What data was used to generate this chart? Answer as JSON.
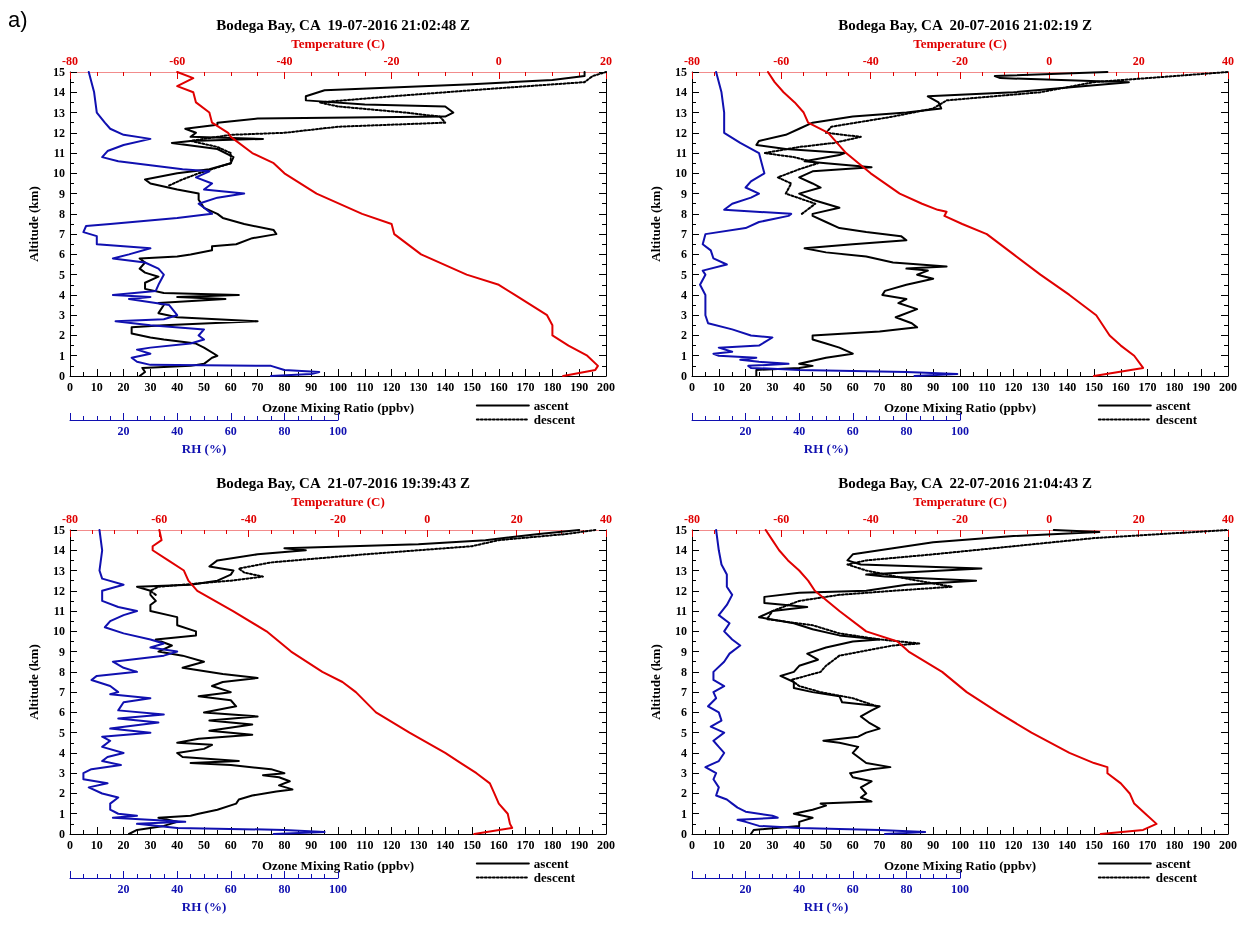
{
  "chart_data": [
    {
      "type": "line",
      "title": "Bodega Bay, CA  19-07-2016 21:02:48 Z",
      "annotations": [
        "a)"
      ],
      "xlabel": "Ozone Mixing Ratio (ppbv)",
      "ylabel": "Altitude (km)",
      "x2label": "Temperature (C)",
      "xlim": [
        0,
        200
      ],
      "xticks": [
        0,
        10,
        20,
        30,
        40,
        50,
        60,
        70,
        80,
        90,
        100,
        110,
        120,
        130,
        140,
        150,
        160,
        170,
        180,
        190,
        200
      ],
      "x2lim": [
        -80,
        20
      ],
      "x2ticks": [
        -80,
        -60,
        -40,
        -20,
        0,
        20
      ],
      "ylim": [
        0,
        15
      ],
      "yticks": [
        0,
        1,
        2,
        3,
        4,
        5,
        6,
        7,
        8,
        9,
        10,
        11,
        12,
        13,
        14,
        15
      ],
      "grid": false,
      "legend": "bottom right",
      "series": [
        {
          "name": "ascent",
          "color": "#000000",
          "line_style": "solid",
          "x": [
            26,
            28,
            27,
            45,
            50,
            53,
            55,
            50,
            47,
            35,
            30,
            23,
            23,
            35,
            70,
            40,
            33,
            35,
            33,
            58,
            40,
            63,
            35,
            28,
            28,
            33,
            28,
            26,
            28,
            26,
            40,
            45,
            53,
            53,
            62,
            68,
            77,
            76,
            65,
            57,
            55,
            50,
            48,
            48,
            40,
            30,
            28,
            40,
            52,
            60,
            61,
            55,
            38,
            45,
            72,
            45,
            47,
            43,
            55,
            55,
            70,
            140,
            143,
            140,
            110,
            88,
            88,
            95,
            150,
            180,
            192,
            192
          ],
          "values": [
            0,
            0.2,
            0.4,
            0.5,
            0.6,
            0.9,
            1.0,
            1.4,
            1.6,
            1.8,
            1.9,
            2.1,
            2.4,
            2.5,
            2.7,
            2.9,
            3.1,
            3.5,
            3.6,
            3.8,
            3.9,
            4.0,
            4.1,
            4.3,
            4.6,
            4.9,
            5.1,
            5.3,
            5.6,
            5.8,
            5.9,
            6.0,
            6.2,
            6.4,
            6.5,
            6.8,
            7.0,
            7.2,
            7.5,
            7.8,
            8.0,
            8.3,
            8.7,
            9.0,
            9.2,
            9.5,
            9.7,
            10.0,
            10.2,
            10.5,
            10.8,
            11.2,
            11.5,
            11.6,
            11.7,
            11.8,
            12.0,
            12.2,
            12.4,
            12.5,
            12.7,
            12.8,
            13.0,
            13.3,
            13.4,
            13.6,
            13.8,
            14.1,
            14.4,
            14.6,
            14.8,
            15.0
          ]
        },
        {
          "name": "descent",
          "color": "#000000",
          "line_style": "dotted",
          "x": [
            37,
            42,
            48,
            60,
            60,
            55,
            45,
            60,
            80,
            100,
            140,
            138,
            125,
            100,
            93,
            120,
            160,
            192,
            195,
            200
          ],
          "values": [
            9.4,
            9.7,
            10.0,
            10.5,
            11.0,
            11.3,
            11.6,
            11.9,
            12.0,
            12.3,
            12.5,
            12.8,
            13.0,
            13.3,
            13.5,
            13.8,
            14.2,
            14.5,
            14.8,
            15.0
          ]
        },
        {
          "axis": "x2",
          "color": "#e00000",
          "line_style": "solid",
          "x": [
            12,
            18,
            18.5,
            16.5,
            13,
            10,
            10,
            9,
            3,
            0,
            -6,
            -14.5,
            -19.5,
            -20,
            -25.5,
            -34,
            -40,
            -42,
            -46,
            -50,
            -50.5,
            -53.5,
            -54,
            -56.5,
            -57,
            -60,
            -57,
            -60
          ],
          "values": [
            0,
            0.3,
            0.5,
            1,
            1.5,
            2,
            2.5,
            3,
            4,
            4.5,
            5,
            6,
            7,
            7.5,
            8,
            9,
            10,
            10.5,
            11,
            11.8,
            12,
            12.5,
            13,
            13.5,
            14,
            14.3,
            14.7,
            15
          ]
        }
      ]
    },
    {
      "type": "line",
      "xlabel": "RH (%)",
      "xlim": [
        0,
        100
      ],
      "xticks": [
        20,
        40,
        60,
        80,
        100
      ],
      "ylim": [
        0,
        15
      ],
      "tick_labels": "x",
      "grid": false,
      "series": [
        {
          "color": "#1010b0",
          "line_style": "solid",
          "x": [
            75,
            90,
            93,
            80,
            75,
            30,
            25,
            23,
            30,
            25,
            30,
            45,
            50,
            48,
            50,
            30,
            17,
            35,
            40,
            37,
            22,
            30,
            16,
            32,
            33,
            35,
            33,
            28,
            16,
            22,
            30,
            20,
            10,
            10,
            5,
            6,
            15,
            40,
            53,
            50,
            48,
            55,
            65,
            50,
            53,
            47,
            52,
            42,
            30,
            18,
            12,
            14,
            20,
            30,
            20,
            15,
            13,
            10,
            9,
            7
          ],
          "values": [
            0,
            0.1,
            0.2,
            0.3,
            0.5,
            0.55,
            0.7,
            0.9,
            1.1,
            1.3,
            1.4,
            1.6,
            1.8,
            2.0,
            2.3,
            2.5,
            2.7,
            2.8,
            3.0,
            3.5,
            3.8,
            3.9,
            4.0,
            4.2,
            4.5,
            5.0,
            5.3,
            5.6,
            5.8,
            6.0,
            6.3,
            6.4,
            6.5,
            6.9,
            7.1,
            7.4,
            7.5,
            7.8,
            8.0,
            8.3,
            8.5,
            8.8,
            9.0,
            9.2,
            9.5,
            9.8,
            10.1,
            10.2,
            10.4,
            10.6,
            10.8,
            11.1,
            11.4,
            11.7,
            11.9,
            12.2,
            12.5,
            13,
            14,
            15
          ]
        }
      ]
    },
    {
      "type": "line",
      "title": "Bodega Bay, CA  20-07-2016 21:02:19 Z",
      "xlabel": "Ozone Mixing Ratio (ppbv)",
      "ylabel": "Altitude (km)",
      "x2label": "Temperature (C)",
      "xlim": [
        0,
        200
      ],
      "xticks": [
        0,
        10,
        20,
        30,
        40,
        50,
        60,
        70,
        80,
        90,
        100,
        110,
        120,
        130,
        140,
        150,
        160,
        170,
        180,
        190,
        200
      ],
      "x2lim": [
        -80,
        40
      ],
      "x2ticks": [
        -80,
        -60,
        -40,
        -20,
        0,
        20,
        40
      ],
      "ylim": [
        0,
        15
      ],
      "yticks": [
        0,
        1,
        2,
        3,
        4,
        5,
        6,
        7,
        8,
        9,
        10,
        11,
        12,
        13,
        14,
        15
      ],
      "grid": false,
      "legend": "bottom right",
      "series": [
        {
          "name": "ascent",
          "color": "#000000",
          "line_style": "solid",
          "x": [
            24,
            24,
            40,
            45,
            40,
            50,
            55,
            60,
            55,
            50,
            45,
            45,
            70,
            84,
            82,
            76,
            78,
            84,
            77,
            80,
            71,
            72,
            80,
            90,
            84,
            88,
            80,
            95,
            75,
            65,
            50,
            42,
            60,
            80,
            78,
            65,
            55,
            50,
            45,
            45,
            55,
            50,
            45,
            40,
            48,
            45,
            40,
            45,
            67,
            50,
            42,
            55,
            57,
            35,
            24,
            25,
            35,
            40,
            45,
            60,
            80,
            93,
            92,
            88,
            120,
            163,
            115,
            113,
            155
          ],
          "values": [
            0,
            0.3,
            0.4,
            0.5,
            0.6,
            0.9,
            1.0,
            1.1,
            1.4,
            1.6,
            1.8,
            2.0,
            2.2,
            2.4,
            2.6,
            2.9,
            3.0,
            3.3,
            3.6,
            3.8,
            4.0,
            4.2,
            4.5,
            4.8,
            5.0,
            5.2,
            5.3,
            5.4,
            5.6,
            5.9,
            6.1,
            6.3,
            6.5,
            6.7,
            6.9,
            7.1,
            7.3,
            7.6,
            7.9,
            8.0,
            8.3,
            8.5,
            8.7,
            9.0,
            9.3,
            9.5,
            9.8,
            10.1,
            10.3,
            10.5,
            10.6,
            10.9,
            11.0,
            11.2,
            11.4,
            11.6,
            11.9,
            12.2,
            12.5,
            12.8,
            13.0,
            13.2,
            13.5,
            13.8,
            14.0,
            14.5,
            14.7,
            14.8,
            15.0
          ]
        },
        {
          "name": "descent",
          "color": "#000000",
          "line_style": "dotted",
          "x": [
            41,
            46,
            35,
            37,
            32,
            40,
            47,
            38,
            27,
            40,
            53,
            63,
            50,
            52,
            75,
            90,
            95,
            130,
            150,
            180,
            200
          ],
          "values": [
            8.0,
            8.5,
            9.0,
            9.5,
            9.8,
            10.2,
            10.5,
            10.8,
            11.0,
            11.3,
            11.5,
            11.8,
            12.0,
            12.3,
            12.8,
            13.2,
            13.6,
            14.0,
            14.5,
            14.8,
            15.0
          ]
        },
        {
          "axis": "x2",
          "color": "#e00000",
          "line_style": "solid",
          "x": [
            10,
            21,
            19,
            16,
            13.5,
            10.5,
            4.5,
            -2,
            -8,
            -14,
            -19.5,
            -23.5,
            -23,
            -25,
            -28.5,
            -33.5,
            -40,
            -45.5,
            -49.5,
            -54,
            -55,
            -57,
            -59.5,
            -61.5,
            -63
          ],
          "values": [
            0,
            0.4,
            1,
            1.5,
            2,
            3,
            4,
            5,
            6,
            7,
            7.5,
            7.9,
            8.1,
            8.2,
            8.5,
            9,
            10,
            11,
            12,
            12.5,
            13,
            13.5,
            14,
            14.5,
            15
          ]
        }
      ]
    },
    {
      "type": "line",
      "xlabel": "RH (%)",
      "xlim": [
        0,
        100
      ],
      "xticks": [
        20,
        40,
        60,
        80,
        100
      ],
      "ylim": [
        0,
        15
      ],
      "tick_labels": "x",
      "grid": false,
      "series": [
        {
          "color": "#1010b0",
          "line_style": "solid",
          "x": [
            83,
            99,
            80,
            40,
            22,
            21,
            36,
            25,
            18,
            24,
            10,
            8,
            15,
            10,
            25,
            30,
            22,
            15,
            6,
            5,
            5,
            3,
            5,
            4,
            13,
            8,
            7,
            4,
            5,
            20,
            25,
            36,
            37,
            12,
            15,
            22,
            25,
            20,
            22,
            27,
            26,
            25,
            18,
            12,
            12,
            11,
            9
          ],
          "values": [
            0,
            0.1,
            0.2,
            0.3,
            0.4,
            0.5,
            0.6,
            0.7,
            0.8,
            0.9,
            1.0,
            1.1,
            1.2,
            1.4,
            1.5,
            1.9,
            2.0,
            2.3,
            2.6,
            3.0,
            4.0,
            4.5,
            5.0,
            5.2,
            5.5,
            5.8,
            6.2,
            6.5,
            7.0,
            7.3,
            7.6,
            7.9,
            8.0,
            8.2,
            8.5,
            8.8,
            9.0,
            9.3,
            9.6,
            10.0,
            10.5,
            11.0,
            11.5,
            12.0,
            13,
            14,
            15
          ]
        }
      ]
    },
    {
      "type": "line",
      "title": "Bodega Bay, CA  21-07-2016 19:39:43 Z",
      "xlabel": "Ozone Mixing Ratio (ppbv)",
      "ylabel": "Altitude (km)",
      "x2label": "Temperature (C)",
      "xlim": [
        0,
        200
      ],
      "xticks": [
        0,
        10,
        20,
        30,
        40,
        50,
        60,
        70,
        80,
        90,
        100,
        110,
        120,
        130,
        140,
        150,
        160,
        170,
        180,
        190,
        200
      ],
      "x2lim": [
        -80,
        40
      ],
      "x2ticks": [
        -80,
        -60,
        -40,
        -20,
        0,
        20,
        40
      ],
      "ylim": [
        0,
        15
      ],
      "yticks": [
        0,
        1,
        2,
        3,
        4,
        5,
        6,
        7,
        8,
        9,
        10,
        11,
        12,
        13,
        14,
        15
      ],
      "grid": false,
      "legend": "bottom right",
      "series": [
        {
          "name": "ascent",
          "color": "#000000",
          "line_style": "solid",
          "x": [
            22,
            25,
            35,
            40,
            33,
            45,
            48,
            55,
            62,
            63,
            68,
            77,
            83,
            78,
            82,
            78,
            72,
            80,
            75,
            60,
            45,
            63,
            42,
            40,
            50,
            53,
            40,
            48,
            68,
            52,
            68,
            52,
            70,
            50,
            62,
            60,
            48,
            60,
            53,
            57,
            70,
            57,
            42,
            50,
            42,
            33,
            38,
            32,
            47,
            47,
            40,
            40,
            30,
            30,
            32,
            30,
            30,
            25,
            45,
            55,
            60,
            61,
            52,
            55,
            70,
            88,
            80,
            130,
            155,
            175,
            190
          ],
          "values": [
            0,
            0.2,
            0.4,
            0.6,
            0.8,
            0.9,
            1.0,
            1.2,
            1.5,
            1.7,
            1.9,
            2.1,
            2.2,
            2.4,
            2.6,
            2.8,
            2.9,
            3.0,
            3.2,
            3.4,
            3.5,
            3.6,
            3.8,
            4.0,
            4.2,
            4.4,
            4.5,
            4.7,
            4.9,
            5.1,
            5.4,
            5.6,
            5.8,
            6.0,
            6.3,
            6.6,
            6.8,
            7.0,
            7.3,
            7.5,
            7.7,
            7.9,
            8.2,
            8.5,
            8.8,
            9.0,
            9.3,
            9.6,
            9.8,
            10.0,
            10.3,
            10.7,
            11.0,
            11.3,
            11.5,
            11.8,
            12.0,
            12.2,
            12.3,
            12.5,
            12.8,
            13.0,
            13.2,
            13.5,
            13.8,
            14.0,
            14.1,
            14.3,
            14.5,
            14.8,
            15.0
          ]
        },
        {
          "name": "descent",
          "color": "#000000",
          "line_style": "dotted",
          "x": [
            32,
            30,
            33,
            60,
            72,
            65,
            63,
            75,
            110,
            150,
            160,
            185,
            196
          ],
          "values": [
            11.8,
            12.0,
            12.2,
            12.5,
            12.7,
            12.9,
            13.1,
            13.4,
            13.8,
            14.2,
            14.5,
            14.8,
            15.0
          ]
        },
        {
          "axis": "x2",
          "color": "#e00000",
          "line_style": "solid",
          "x": [
            10.5,
            19,
            18.5,
            18,
            16,
            15,
            14,
            11,
            7.5,
            4,
            -4,
            -11.5,
            -16,
            -19,
            -23.5,
            -30.5,
            -36,
            -43.5,
            -51.5,
            -53.5,
            -54.5,
            -58,
            -61.5,
            -61.5,
            -59.5,
            -60
          ],
          "values": [
            0,
            0.3,
            0.5,
            1,
            1.5,
            2,
            2.5,
            3,
            3.5,
            4,
            5,
            6,
            7,
            7.5,
            8,
            9,
            10,
            11,
            12,
            12.5,
            13,
            13.5,
            14,
            14.2,
            14.5,
            15
          ]
        }
      ]
    },
    {
      "type": "line",
      "xlabel": "RH (%)",
      "xlim": [
        0,
        100
      ],
      "xticks": [
        20,
        40,
        60,
        80,
        100
      ],
      "ylim": [
        0,
        15
      ],
      "tick_labels": "x",
      "grid": false,
      "series": [
        {
          "color": "#1010b0",
          "line_style": "solid",
          "x": [
            76,
            95,
            80,
            40,
            25,
            43,
            16,
            25,
            18,
            15,
            15,
            18,
            12,
            7,
            14,
            5,
            5,
            8,
            19,
            12,
            14,
            20,
            12,
            15,
            12,
            30,
            15,
            33,
            18,
            35,
            18,
            20,
            30,
            15,
            18,
            15,
            8,
            10,
            25,
            20,
            16,
            35,
            40,
            30,
            35,
            30,
            20,
            13,
            15,
            20,
            25,
            18,
            12,
            12,
            20,
            12,
            11,
            12,
            11
          ],
          "values": [
            0,
            0.1,
            0.2,
            0.3,
            0.5,
            0.6,
            0.8,
            0.9,
            1.0,
            1.2,
            1.5,
            1.8,
            2.0,
            2.3,
            2.5,
            2.7,
            3.0,
            3.2,
            3.4,
            3.6,
            3.8,
            4.0,
            4.3,
            4.6,
            4.8,
            5.0,
            5.2,
            5.5,
            5.7,
            5.9,
            6.1,
            6.5,
            6.7,
            6.9,
            7.0,
            7.3,
            7.6,
            7.8,
            8.0,
            8.2,
            8.5,
            8.8,
            9.0,
            9.2,
            9.4,
            9.6,
            9.9,
            10.2,
            10.5,
            10.8,
            11.0,
            11.2,
            11.5,
            12.0,
            12.3,
            12.6,
            13,
            14,
            15
          ]
        }
      ]
    },
    {
      "type": "line",
      "title": "Bodega Bay, CA  22-07-2016 21:04:43 Z",
      "xlabel": "Ozone Mixing Ratio (ppbv)",
      "ylabel": "Altitude (km)",
      "x2label": "Temperature (C)",
      "xlim": [
        0,
        200
      ],
      "xticks": [
        0,
        10,
        20,
        30,
        40,
        50,
        60,
        70,
        80,
        90,
        100,
        110,
        120,
        130,
        140,
        150,
        160,
        170,
        180,
        190,
        200
      ],
      "x2lim": [
        -80,
        40
      ],
      "x2ticks": [
        -80,
        -60,
        -40,
        -20,
        0,
        20,
        40
      ],
      "ylim": [
        0,
        15
      ],
      "yticks": [
        0,
        1,
        2,
        3,
        4,
        5,
        6,
        7,
        8,
        9,
        10,
        11,
        12,
        13,
        14,
        15
      ],
      "grid": false,
      "legend": "bottom right",
      "series": [
        {
          "name": "ascent",
          "color": "#000000",
          "line_style": "solid",
          "x": [
            22,
            23,
            40,
            40,
            45,
            38,
            45,
            50,
            48,
            67,
            63,
            65,
            63,
            67,
            60,
            59,
            67,
            74,
            65,
            62,
            60,
            62,
            55,
            49,
            62,
            65,
            70,
            66,
            63,
            67,
            70,
            56,
            55,
            45,
            38,
            38,
            33,
            38,
            40,
            47,
            43,
            50,
            60,
            70,
            55,
            45,
            38,
            25,
            30,
            43,
            27,
            27,
            40,
            65,
            80,
            106,
            72,
            65,
            108,
            63,
            58,
            60,
            75,
            90,
            120,
            152,
            135
          ],
          "values": [
            0,
            0.2,
            0.4,
            0.6,
            0.8,
            1.0,
            1.2,
            1.4,
            1.5,
            1.6,
            1.8,
            2.0,
            2.3,
            2.6,
            2.8,
            3.0,
            3.2,
            3.3,
            3.5,
            3.8,
            4.0,
            4.3,
            4.5,
            4.6,
            4.8,
            5.0,
            5.2,
            5.5,
            5.8,
            6.1,
            6.3,
            6.5,
            6.8,
            7.0,
            7.2,
            7.5,
            7.8,
            8.0,
            8.3,
            8.6,
            8.9,
            9.2,
            9.5,
            9.6,
            9.8,
            10.1,
            10.4,
            10.7,
            11.0,
            11.2,
            11.4,
            11.7,
            11.9,
            12.0,
            12.3,
            12.5,
            12.7,
            12.8,
            13.1,
            13.3,
            13.5,
            13.8,
            14.1,
            14.4,
            14.7,
            14.9,
            15.0
          ]
        },
        {
          "name": "descent",
          "color": "#000000",
          "line_style": "dotted",
          "x": [
            69,
            60,
            48,
            40,
            37,
            48,
            50,
            55,
            75,
            85,
            70,
            55,
            45,
            28,
            30,
            40,
            55,
            75,
            97,
            80,
            65,
            58,
            65,
            90,
            120,
            150,
            200
          ],
          "values": [
            6.3,
            6.7,
            7.0,
            7.3,
            7.6,
            8.0,
            8.3,
            8.8,
            9.3,
            9.4,
            9.6,
            9.9,
            10.3,
            10.6,
            11.0,
            11.5,
            11.8,
            12.0,
            12.2,
            12.6,
            13.0,
            13.3,
            13.5,
            13.8,
            14.2,
            14.6,
            15.0
          ]
        },
        {
          "axis": "x2",
          "color": "#e00000",
          "line_style": "solid",
          "x": [
            11.5,
            21,
            24,
            21.5,
            19,
            18,
            16,
            13,
            13,
            10,
            4.5,
            -4,
            -11.5,
            -18.5,
            -24,
            -31.5,
            -34,
            -41,
            -47,
            -52.5,
            -54,
            -56,
            -58.5,
            -60.5,
            -62,
            -63.5
          ],
          "values": [
            0,
            0.2,
            0.5,
            1,
            1.5,
            2,
            2.5,
            3,
            3.3,
            3.5,
            4,
            5,
            6,
            7,
            8,
            9,
            9.5,
            10,
            11,
            12,
            12.5,
            13,
            13.5,
            14,
            14.5,
            15
          ]
        }
      ]
    },
    {
      "type": "line",
      "xlabel": "RH (%)",
      "xlim": [
        0,
        100
      ],
      "xticks": [
        20,
        40,
        60,
        80,
        100
      ],
      "ylim": [
        0,
        15
      ],
      "tick_labels": "x",
      "grid": false,
      "series": [
        {
          "color": "#1010b0",
          "line_style": "solid",
          "x": [
            72,
            87,
            70,
            40,
            25,
            20,
            17,
            32,
            30,
            20,
            17,
            15,
            13,
            9,
            10,
            8,
            9,
            5,
            10,
            12,
            10,
            8,
            12,
            7,
            11,
            10,
            6,
            9,
            8,
            12,
            8,
            8,
            12,
            14,
            18,
            15,
            12,
            14,
            10,
            13,
            15,
            13,
            13,
            11,
            10,
            9
          ],
          "values": [
            0,
            0.1,
            0.2,
            0.3,
            0.4,
            0.6,
            0.7,
            0.8,
            0.9,
            1.1,
            1.3,
            1.5,
            1.7,
            1.9,
            2.3,
            2.7,
            3.0,
            3.3,
            3.6,
            4.0,
            4.3,
            4.6,
            5.0,
            5.3,
            5.6,
            6.0,
            6.3,
            6.7,
            7.0,
            7.3,
            7.6,
            8.0,
            8.5,
            8.9,
            9.3,
            9.6,
            10.0,
            10.4,
            10.8,
            11.3,
            11.8,
            12.2,
            12.8,
            13.3,
            14,
            15
          ]
        }
      ]
    }
  ]
}
